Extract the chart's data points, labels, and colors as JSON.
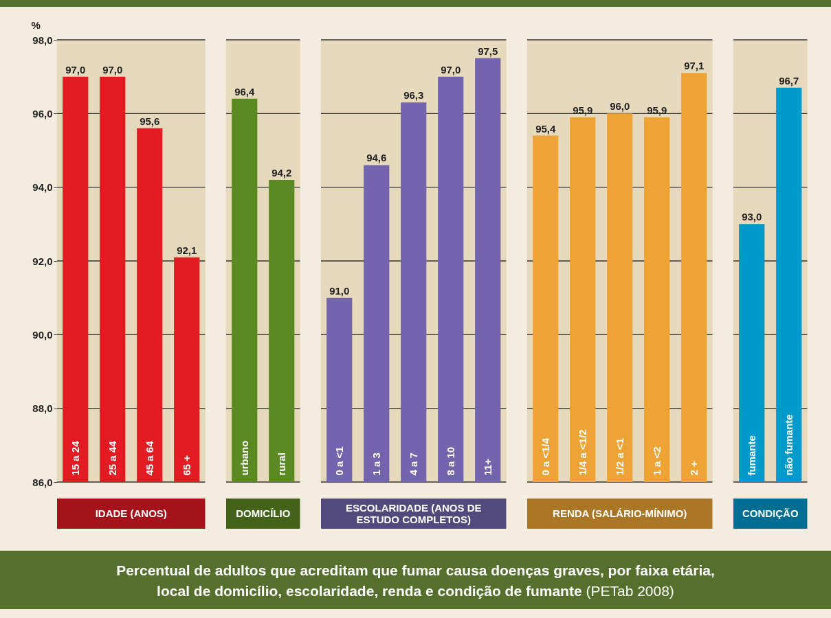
{
  "chart_data": [
    {
      "type": "bar",
      "title": "Percentual de adultos que acreditam que fumar causa doenças graves, por faixa etária, local de domicílio, escolaridade, renda e condição de fumante",
      "annotations": [
        "(PETab 2008)"
      ],
      "ylabel": "%",
      "xlabel": "IDADE (ANOS)",
      "categories": [
        "15 a 24",
        "25 a 44",
        "45 a 64",
        "65 +"
      ],
      "values": [
        97.0,
        97.0,
        95.6,
        92.1
      ],
      "value_labels": [
        "97,0",
        "97,0",
        "95,6",
        "92,1"
      ],
      "color": "#e31b23",
      "ylim": [
        86,
        98
      ],
      "yticks": [
        {
          "value": 86,
          "label": "86,0"
        },
        {
          "value": 88,
          "label": "88,0"
        },
        {
          "value": 90,
          "label": "90,0"
        },
        {
          "value": 92,
          "label": "92,0"
        },
        {
          "value": 94,
          "label": "94,0"
        },
        {
          "value": 96,
          "label": "96,0"
        },
        {
          "value": 98,
          "label": "98,0"
        }
      ],
      "grid": "y",
      "bands": [
        {
          "axis": "x",
          "from": "15 a 24",
          "to": "65 +",
          "label": null,
          "color": "#e6d9bc"
        }
      ]
    },
    {
      "type": "bar",
      "xlabel": "DOMICÍLIO",
      "categories": [
        "urbano",
        "rural"
      ],
      "values": [
        96.4,
        94.2
      ],
      "value_labels": [
        "96,4",
        "94,2"
      ],
      "color": "#5b8a22",
      "ylim": [
        86,
        98
      ],
      "yticks": [
        86,
        88,
        90,
        92,
        94,
        96,
        98
      ],
      "grid": "y",
      "tick_labels": "x",
      "bands": [
        {
          "axis": "x",
          "from": "urbano",
          "to": "rural",
          "label": null,
          "color": "#e6d9bc"
        }
      ]
    },
    {
      "type": "bar",
      "xlabel": "ESCOLARIDADE (ANOS DE ESTUDO COMPLETOS)",
      "categories": [
        "0 a <1",
        "1 a 3",
        "4 a 7",
        "8 a 10",
        "11+"
      ],
      "values": [
        91.0,
        94.6,
        96.3,
        97.0,
        97.5
      ],
      "value_labels": [
        "91,0",
        "94,6",
        "96,3",
        "97,0",
        "97,5"
      ],
      "color": "#7265ad",
      "ylim": [
        86,
        98
      ],
      "yticks": [
        86,
        88,
        90,
        92,
        94,
        96,
        98
      ],
      "grid": "y",
      "tick_labels": "x",
      "bands": [
        {
          "axis": "x",
          "from": "0 a <1",
          "to": "11+",
          "label": null,
          "color": "#e6d9bc"
        }
      ]
    },
    {
      "type": "bar",
      "xlabel": "RENDA (SALÁRIO-MÍNIMO)",
      "categories": [
        "0 a <1/4",
        "1/4 a <1/2",
        "1/2 a <1",
        "1 a <2",
        "2 +"
      ],
      "values": [
        95.4,
        95.9,
        96.0,
        95.9,
        97.1
      ],
      "value_labels": [
        "95,4",
        "95,9",
        "96,0",
        "95,9",
        "97,1"
      ],
      "color": "#eea434",
      "ylim": [
        86,
        98
      ],
      "yticks": [
        86,
        88,
        90,
        92,
        94,
        96,
        98
      ],
      "grid": "y",
      "tick_labels": "x",
      "bands": [
        {
          "axis": "x",
          "from": "0 a <1/4",
          "to": "2 +",
          "label": null,
          "color": "#e6d9bc"
        }
      ]
    },
    {
      "type": "bar",
      "xlabel": "CONDIÇÃO",
      "categories": [
        "fumante",
        "não fumante"
      ],
      "values": [
        93.0,
        96.7
      ],
      "value_labels": [
        "93,0",
        "96,7"
      ],
      "color": "#0099cc",
      "ylim": [
        86,
        98
      ],
      "yticks": [
        86,
        88,
        90,
        92,
        94,
        96,
        98
      ],
      "grid": "y",
      "tick_labels": "x",
      "bands": [
        {
          "axis": "x",
          "from": "fumante",
          "to": "não fumante",
          "label": null,
          "color": "#e6d9bc"
        }
      ]
    }
  ]
}
